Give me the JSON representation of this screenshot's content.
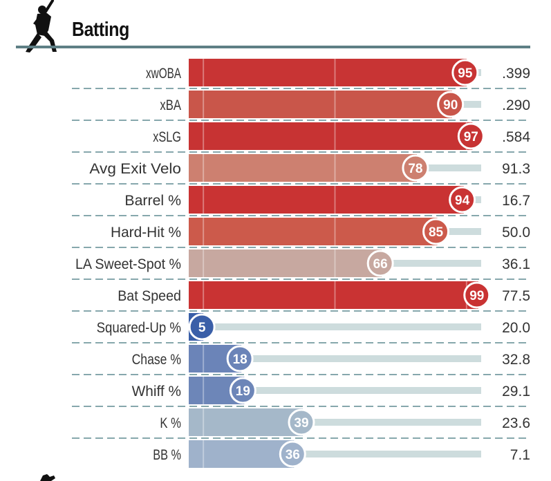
{
  "header": {
    "title": "Batting",
    "icon": "baseball-batter-icon"
  },
  "footer": {
    "icon": "pitcher-icon"
  },
  "colors": {
    "header_rule": "#5e7f85",
    "track": "#cddcdd",
    "divider": "#5e8a91",
    "percentile_scale": {
      "low": "#3a62a8",
      "mid": "#c9b4ae",
      "high": "#c93333"
    }
  },
  "chart_data": {
    "type": "bar",
    "orientation": "horizontal",
    "title": "Batting",
    "xlim": [
      0,
      100
    ],
    "categories": [
      "xwOBA",
      "xBA",
      "xSLG",
      "Avg Exit Velo",
      "Barrel %",
      "Hard-Hit %",
      "LA Sweet-Spot %",
      "Bat Speed",
      "Squared-Up %",
      "Chase %",
      "Whiff %",
      "K %",
      "BB %"
    ],
    "percentiles": [
      95,
      90,
      97,
      78,
      94,
      85,
      66,
      99,
      5,
      18,
      19,
      39,
      36
    ],
    "values": [
      ".399",
      ".290",
      ".584",
      "91.3",
      "16.7",
      "50.0",
      "36.1",
      "77.5",
      "20.0",
      "32.8",
      "29.1",
      "23.6",
      "7.1"
    ],
    "colors": [
      "#c83434",
      "#c9564a",
      "#c73333",
      "#cd8070",
      "#c93333",
      "#cc5a4b",
      "#c7a8a0",
      "#c93333",
      "#3a5fa8",
      "#6b84b8",
      "#6d86b8",
      "#a5b8c9",
      "#9fb2cb"
    ]
  }
}
